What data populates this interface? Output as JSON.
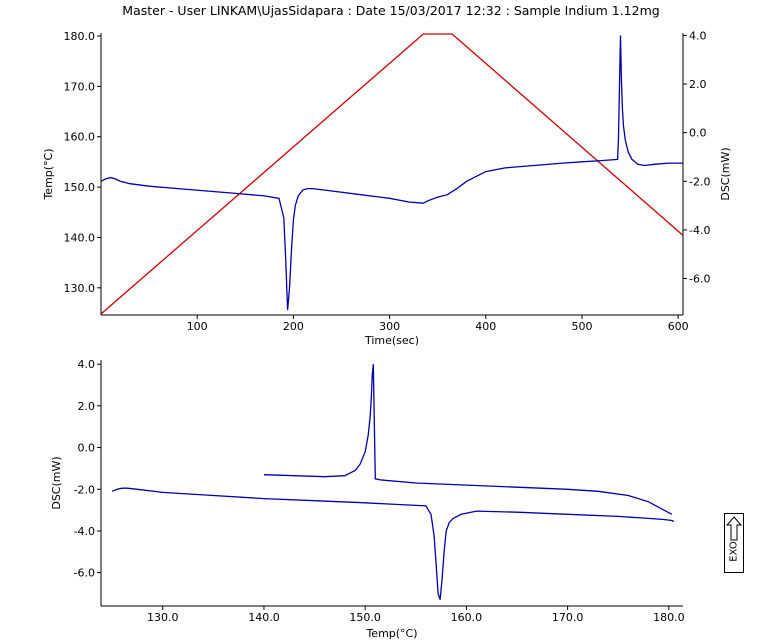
{
  "title": "Master - User LINKAM\\UjasSidapara : Date 15/03/2017 12:32 : Sample Indium 1.12mg",
  "exo_label": "EXO",
  "colors": {
    "temp": "#cc0000",
    "dsc": "#0000aa",
    "axis": "#000000"
  },
  "chart_data": [
    {
      "type": "line",
      "xlabel": "Time(sec)",
      "ylabel": "Temp(°C)",
      "y2label": "DSC(mW)",
      "xlim": [
        0,
        605
      ],
      "ylim": [
        124.6,
        180.6
      ],
      "y2lim": [
        -7.5,
        4.1
      ],
      "x_ticks": [
        100,
        200,
        300,
        400,
        500,
        600
      ],
      "x_tick_labels": [
        "100",
        "200",
        "300",
        "400",
        "500",
        "600"
      ],
      "y_ticks": [
        130,
        140,
        150,
        160,
        170,
        180
      ],
      "y_tick_labels": [
        "130.0",
        "140.0",
        "150.0",
        "160.0",
        "170.0",
        "180.0"
      ],
      "y2_ticks": [
        -6,
        -4,
        -2,
        0,
        2,
        4
      ],
      "y2_tick_labels": [
        "-6.0",
        "-4.0",
        "-2.0",
        "0.0",
        "2.0",
        "4.0"
      ],
      "series": [
        {
          "axis": "left",
          "color": "#cc0000",
          "x": [
            0,
            335,
            365,
            605
          ],
          "y": [
            124.8,
            180.4,
            180.4,
            140.4
          ]
        },
        {
          "axis": "right",
          "color": "#0000aa",
          "x": [
            0,
            5,
            10,
            15,
            20,
            30,
            50,
            80,
            110,
            140,
            170,
            185,
            190,
            192,
            194,
            196,
            198,
            200,
            202,
            205,
            210,
            215,
            220,
            240,
            270,
            300,
            320,
            335,
            340,
            350,
            360,
            370,
            380,
            390,
            400,
            420,
            450,
            480,
            500,
            520,
            537,
            538,
            539,
            540,
            541,
            542,
            543,
            545,
            548,
            552,
            558,
            565,
            575,
            590,
            605
          ],
          "y": [
            -2.0,
            -1.9,
            -1.85,
            -1.9,
            -2.0,
            -2.1,
            -2.2,
            -2.3,
            -2.4,
            -2.5,
            -2.6,
            -2.7,
            -3.5,
            -5.2,
            -7.3,
            -6.4,
            -4.8,
            -3.6,
            -3.0,
            -2.6,
            -2.35,
            -2.3,
            -2.3,
            -2.4,
            -2.55,
            -2.7,
            -2.85,
            -2.9,
            -2.8,
            -2.65,
            -2.55,
            -2.3,
            -2.0,
            -1.8,
            -1.6,
            -1.45,
            -1.35,
            -1.25,
            -1.2,
            -1.15,
            -1.1,
            -0.2,
            2.0,
            4.0,
            2.2,
            1.0,
            0.3,
            -0.3,
            -0.8,
            -1.1,
            -1.3,
            -1.35,
            -1.3,
            -1.25,
            -1.25
          ]
        }
      ]
    },
    {
      "type": "line",
      "xlabel": "Temp(°C)",
      "ylabel": "DSC(mW)",
      "xlim": [
        123.9,
        181.4
      ],
      "ylim": [
        -7.6,
        4.2
      ],
      "x_ticks": [
        130,
        140,
        150,
        160,
        170,
        180
      ],
      "x_tick_labels": [
        "130.0",
        "140.0",
        "150.0",
        "160.0",
        "170.0",
        "180.0"
      ],
      "y_ticks": [
        -6,
        -4,
        -2,
        0,
        2,
        4
      ],
      "y_tick_labels": [
        "-6.0",
        "-4.0",
        "-2.0",
        "0.0",
        "2.0",
        "4.0"
      ],
      "series": [
        {
          "color": "#0000aa",
          "x": [
            125.0,
            125.5,
            126.0,
            126.5,
            127.5,
            130,
            135,
            140,
            145,
            150,
            154,
            156.0,
            156.5,
            156.8,
            157.0,
            157.2,
            157.4,
            157.6,
            157.8,
            158.0,
            158.3,
            158.7,
            159.5,
            161,
            165,
            170,
            175,
            178,
            179.5,
            180.3,
            180.5
          ],
          "y": [
            -2.1,
            -2.0,
            -1.95,
            -1.95,
            -2.0,
            -2.15,
            -2.3,
            -2.45,
            -2.55,
            -2.65,
            -2.75,
            -2.8,
            -3.2,
            -4.2,
            -5.5,
            -7.0,
            -7.3,
            -6.3,
            -5.0,
            -4.0,
            -3.6,
            -3.4,
            -3.2,
            -3.05,
            -3.1,
            -3.2,
            -3.3,
            -3.4,
            -3.45,
            -3.5,
            -3.55
          ]
        },
        {
          "color": "#0000aa",
          "x": [
            140.0,
            143,
            146,
            148,
            149,
            149.5,
            150.0,
            150.3,
            150.5,
            150.6,
            150.7,
            150.8,
            151.0,
            151.5,
            155,
            160,
            165,
            170,
            173,
            176,
            178,
            179.5,
            180.3
          ],
          "y": [
            -1.3,
            -1.35,
            -1.4,
            -1.35,
            -1.1,
            -0.8,
            -0.2,
            0.6,
            1.5,
            2.4,
            3.5,
            4.0,
            -1.5,
            -1.55,
            -1.7,
            -1.8,
            -1.9,
            -2.0,
            -2.1,
            -2.3,
            -2.6,
            -3.0,
            -3.2
          ]
        }
      ]
    }
  ]
}
